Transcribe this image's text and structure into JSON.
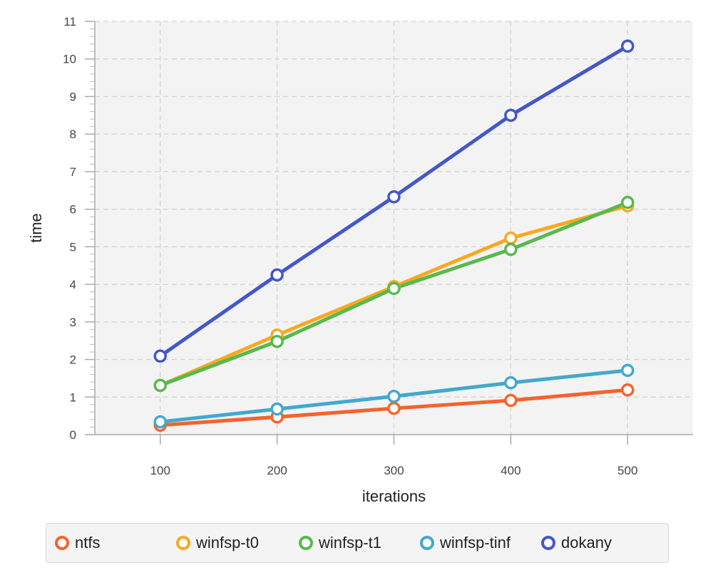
{
  "chart_data": {
    "type": "line",
    "xlabel": "iterations",
    "ylabel": "time",
    "x": [
      100,
      200,
      300,
      400,
      500
    ],
    "xlim": [
      44,
      556
    ],
    "ylim": [
      0,
      11
    ],
    "xticks": [
      100,
      200,
      300,
      400,
      500
    ],
    "yticks": [
      0,
      1,
      2,
      3,
      4,
      5,
      6,
      7,
      8,
      9,
      10,
      11
    ],
    "grid": true,
    "legend": "bottom",
    "series": [
      {
        "name": "ntfs",
        "color": "#f4632e",
        "values": [
          0.25,
          0.47,
          0.7,
          0.91,
          1.19
        ]
      },
      {
        "name": "winfsp-t0",
        "color": "#f8a91f",
        "values": [
          1.31,
          2.65,
          3.94,
          5.23,
          6.09
        ]
      },
      {
        "name": "winfsp-t1",
        "color": "#58b84f",
        "values": [
          1.31,
          2.48,
          3.89,
          4.93,
          6.18
        ]
      },
      {
        "name": "winfsp-tinf",
        "color": "#42a9cc",
        "values": [
          0.34,
          0.68,
          1.02,
          1.38,
          1.71
        ]
      },
      {
        "name": "dokany",
        "color": "#4357c9",
        "values": [
          2.09,
          4.25,
          6.33,
          8.5,
          10.34
        ]
      }
    ]
  }
}
